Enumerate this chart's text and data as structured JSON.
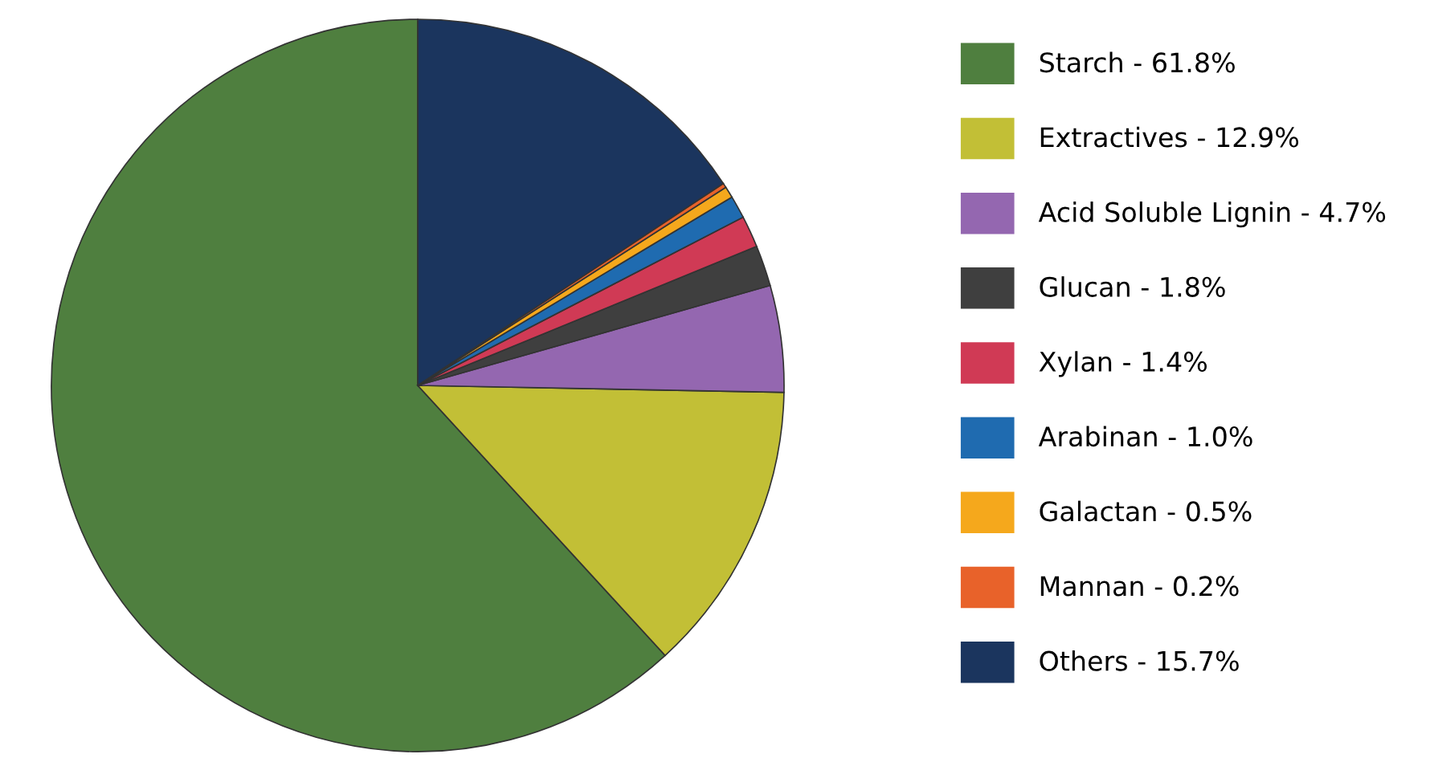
{
  "chart_data": {
    "type": "pie",
    "categories": [
      "Starch - 61.8%",
      "Extractives - 12.9%",
      "Acid Soluble Lignin - 4.7%",
      "Glucan - 1.8%",
      "Xylan - 1.4%",
      "Arabinan - 1.0%",
      "Galactan - 0.5%",
      "Mannan - 0.2%",
      "Others - 15.7%"
    ],
    "values": [
      61.8,
      12.9,
      4.7,
      1.8,
      1.4,
      1.0,
      0.5,
      0.2,
      15.7
    ],
    "colors": [
      "#4f7f3f",
      "#c2bf36",
      "#9467b0",
      "#3f3f3f",
      "#d03a55",
      "#1f6bb0",
      "#f5a81c",
      "#e8622a",
      "#1b355e"
    ],
    "legend": "right"
  }
}
